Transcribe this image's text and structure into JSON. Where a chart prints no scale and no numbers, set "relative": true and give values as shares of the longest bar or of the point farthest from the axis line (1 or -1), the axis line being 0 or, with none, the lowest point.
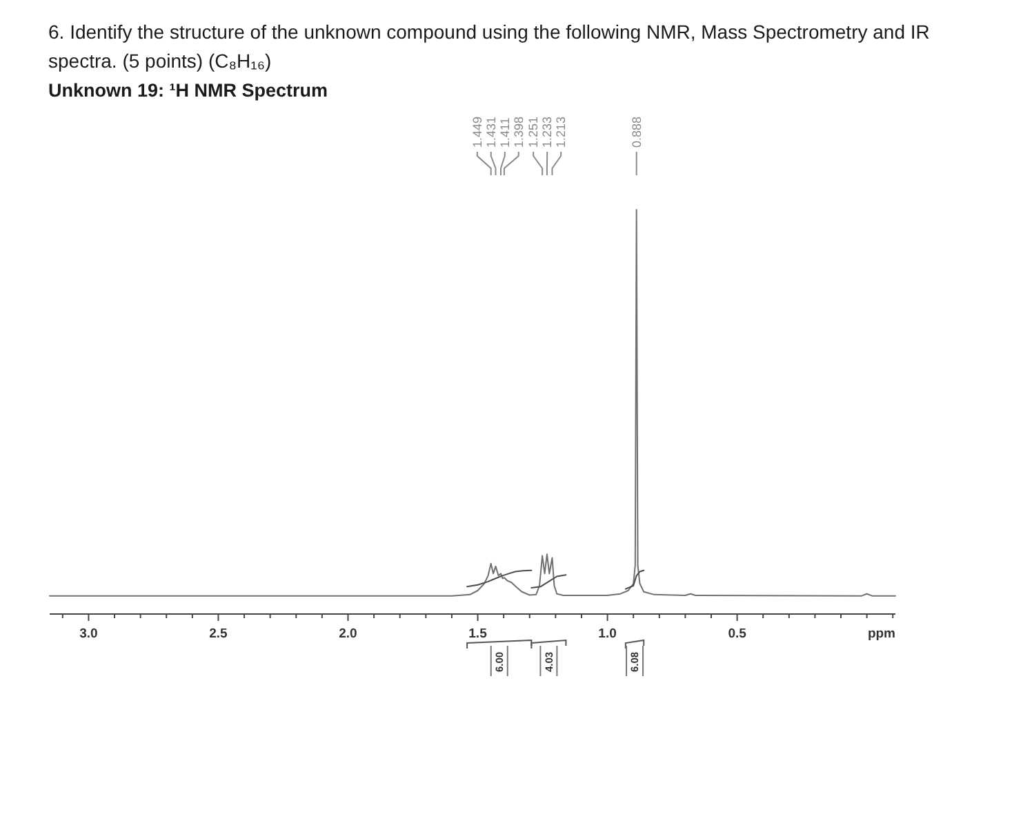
{
  "chart_data": {
    "type": "line",
    "title": "6. Identify the structure of the unknown compound using the following NMR, Mass Spectrometry and IR spectra. (5 points) (C₈H₁₆)",
    "subtitle": "Unknown 19: ¹H NMR Spectrum",
    "xlabel": "ppm",
    "relative": true,
    "xlim": [
      3.15,
      -0.11
    ],
    "xticks": [
      {
        "value": 3.1,
        "label": null
      },
      {
        "value": 3,
        "label": "3.0"
      },
      {
        "value": 2.9,
        "label": null
      },
      {
        "value": 2.8,
        "label": null
      },
      {
        "value": 2.7,
        "label": null
      },
      {
        "value": 2.6,
        "label": null
      },
      2.5,
      {
        "value": 2.4,
        "label": null
      },
      {
        "value": 2.3,
        "label": null
      },
      {
        "value": 2.2,
        "label": null
      },
      {
        "value": 2.1,
        "label": null
      },
      {
        "value": 2,
        "label": "2.0"
      },
      {
        "value": 1.9,
        "label": null
      },
      {
        "value": 1.8,
        "label": null
      },
      {
        "value": 1.7,
        "label": null
      },
      {
        "value": 1.6,
        "label": null
      },
      1.5,
      {
        "value": 1.4,
        "label": null
      },
      {
        "value": 1.3,
        "label": null
      },
      {
        "value": 1.2,
        "label": null
      },
      {
        "value": 1.1,
        "label": null
      },
      {
        "value": 1,
        "label": "1.0"
      },
      {
        "value": 0.9,
        "label": null
      },
      {
        "value": 0.8,
        "label": null
      },
      {
        "value": 0.7,
        "label": null
      },
      {
        "value": 0.6,
        "label": null
      },
      0.5,
      {
        "value": 0.4,
        "label": null
      },
      {
        "value": 0.3,
        "label": null
      },
      {
        "value": 0.2,
        "label": null
      },
      {
        "value": 0.1,
        "label": null
      },
      {
        "value": 0,
        "label": null
      },
      {
        "value": -0.1,
        "label": null
      }
    ],
    "series": [
      {
        "color": "#707070",
        "x": [
          3.15,
          1.6,
          1.53,
          1.5,
          1.475,
          1.46,
          1.449,
          1.44,
          1.431,
          1.42,
          1.411,
          1.404,
          1.398,
          1.385,
          1.37,
          1.35,
          1.33,
          1.3,
          1.275,
          1.262,
          1.251,
          1.242,
          1.233,
          1.224,
          1.213,
          1.205,
          1.195,
          1.17,
          1.0,
          0.95,
          0.92,
          0.9,
          0.893,
          0.888,
          0.883,
          0.875,
          0.86,
          0.82,
          0.7,
          0.68,
          0.66,
          0.02,
          0.0,
          -0.02,
          -0.11
        ],
        "values": [
          0.045,
          0.045,
          0.048,
          0.058,
          0.075,
          0.095,
          0.125,
          0.1,
          0.118,
          0.095,
          0.1,
          0.088,
          0.09,
          0.082,
          0.078,
          0.066,
          0.055,
          0.047,
          0.048,
          0.07,
          0.144,
          0.1,
          0.148,
          0.1,
          0.139,
          0.07,
          0.05,
          0.046,
          0.046,
          0.05,
          0.058,
          0.075,
          0.12,
          1.0,
          0.12,
          0.075,
          0.055,
          0.048,
          0.046,
          0.05,
          0.046,
          0.045,
          0.05,
          0.045,
          0.045
        ]
      },
      {
        "color": "#4a4a4a",
        "x": [
          1.541,
          1.5,
          1.461,
          1.435,
          1.408,
          1.38,
          1.355,
          1.325,
          1.293
        ],
        "values": [
          0.068,
          0.072,
          0.08,
          0.087,
          0.094,
          0.1,
          0.105,
          0.107,
          0.108
        ]
      },
      {
        "color": "#4a4a4a",
        "x": [
          1.293,
          1.257,
          1.24,
          1.222,
          1.195,
          1.16
        ],
        "values": [
          0.065,
          0.068,
          0.075,
          0.082,
          0.093,
          0.097
        ]
      },
      {
        "color": "#4a4a4a",
        "x": [
          0.93,
          0.9,
          0.888,
          0.875,
          0.86
        ],
        "values": [
          0.062,
          0.07,
          0.095,
          0.105,
          0.108
        ]
      }
    ],
    "annotations": [
      {
        "text": "1.449",
        "x": 1.449
      },
      {
        "text": "1.431",
        "x": 1.431
      },
      {
        "text": "1.411",
        "x": 1.411
      },
      {
        "text": "1.398",
        "x": 1.398
      },
      {
        "text": "1.251",
        "x": 1.251
      },
      {
        "text": "1.233",
        "x": 1.233
      },
      {
        "text": "1.213",
        "x": 1.213
      },
      {
        "text": "0.888",
        "x": 0.888
      },
      "6.00",
      "4.03",
      "6.08"
    ]
  }
}
